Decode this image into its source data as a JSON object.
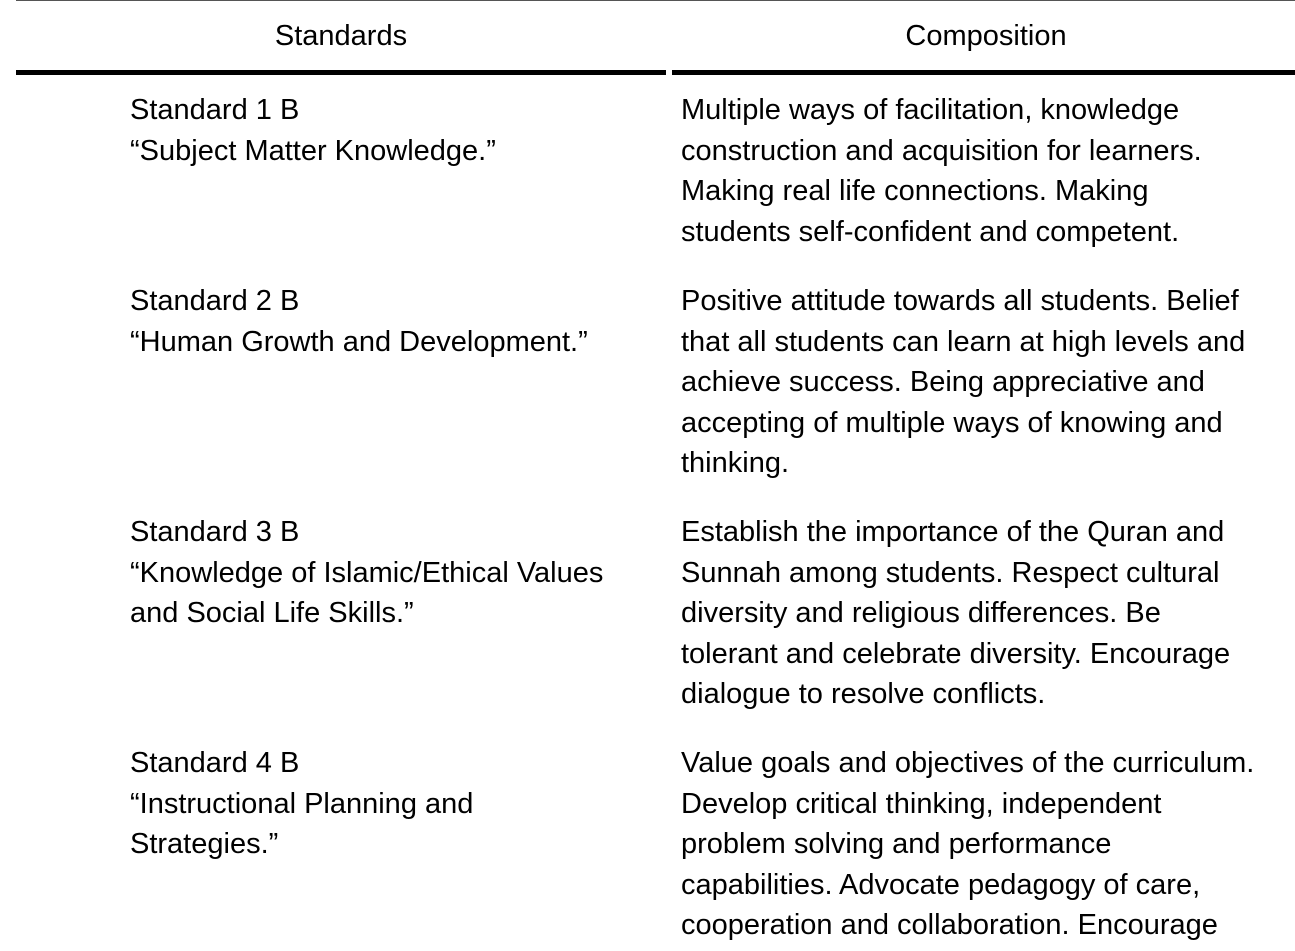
{
  "table": {
    "headers": {
      "standards": "Standards",
      "composition": "Composition"
    },
    "rows": [
      {
        "standard_lines": [
          "Standard 1 B",
          "“Subject Matter Knowledge.”"
        ],
        "composition_lines": [
          "Multiple ways of facilitation, knowledge",
          "construction and acquisition for learners.",
          "Making real life connections. Making",
          "students self-confident and competent."
        ]
      },
      {
        "standard_lines": [
          "Standard 2 B",
          "“Human Growth and Development.”"
        ],
        "composition_lines": [
          "Positive attitude towards all students. Belief",
          "that all students can learn at high levels and",
          "achieve success. Being appreciative and",
          "accepting of multiple ways of knowing and",
          "thinking."
        ]
      },
      {
        "standard_lines": [
          "Standard 3 B",
          "“Knowledge of Islamic/Ethical Values",
          "and Social Life Skills.”"
        ],
        "composition_lines": [
          "Establish the importance of the Quran and",
          "Sunnah among students. Respect cultural",
          "diversity and religious differences. Be",
          "tolerant and celebrate diversity. Encourage",
          "dialogue to resolve conflicts."
        ]
      },
      {
        "standard_lines": [
          "Standard 4 B",
          "“Instructional Planning and",
          "Strategies.”"
        ],
        "composition_lines": [
          "Value goals and objectives of the curriculum.",
          "Develop critical thinking, independent",
          "problem solving and performance",
          "capabilities. Advocate pedagogy of care,",
          "cooperation and collaboration. Encourage"
        ]
      }
    ]
  }
}
